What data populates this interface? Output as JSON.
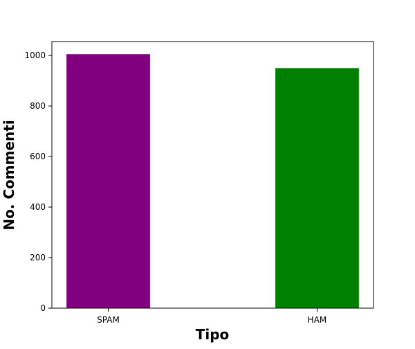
{
  "chart_data": {
    "type": "bar",
    "title": "",
    "xlabel": "Tipo",
    "ylabel": "No. Commenti",
    "categories": [
      "SPAM",
      "HAM"
    ],
    "values": [
      1005,
      950
    ],
    "colors": [
      "#800080",
      "#008000"
    ],
    "ylim": [
      0,
      1055
    ],
    "yticks": [
      0,
      200,
      400,
      600,
      800,
      1000
    ],
    "ytick_labels": [
      "0",
      "200",
      "400",
      "600",
      "800",
      "1000"
    ],
    "grid": false,
    "legend": "none"
  }
}
